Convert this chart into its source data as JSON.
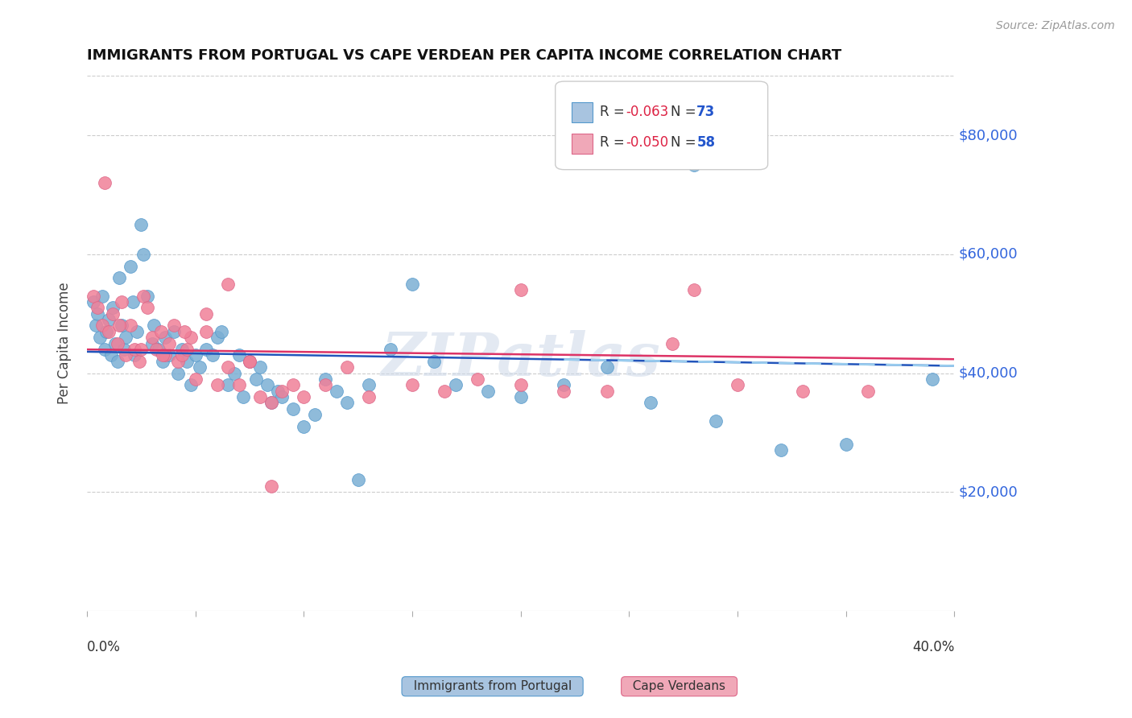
{
  "title": "IMMIGRANTS FROM PORTUGAL VS CAPE VERDEAN PER CAPITA INCOME CORRELATION CHART",
  "source": "Source: ZipAtlas.com",
  "ylabel": "Per Capita Income",
  "watermark": "ZIPatlas",
  "ytick_labels": [
    "$20,000",
    "$40,000",
    "$60,000",
    "$80,000"
  ],
  "ytick_values": [
    20000,
    40000,
    60000,
    80000
  ],
  "ylim": [
    0,
    90000
  ],
  "xlim": [
    0.0,
    0.4
  ],
  "blue_scatter_color": "#7bafd4",
  "pink_scatter_color": "#f08098",
  "blue_line_color": "#2255bb",
  "pink_line_color": "#dd3366",
  "blue_dash_color": "#99ccee",
  "right_label_color": "#3366dd",
  "legend_series1_color": "#a8c4e0",
  "legend_series2_color": "#f0a8b8",
  "legend_series1_edge": "#5599cc",
  "legend_series2_edge": "#dd6688",
  "portugal_x": [
    0.003,
    0.004,
    0.005,
    0.006,
    0.007,
    0.008,
    0.009,
    0.01,
    0.011,
    0.012,
    0.013,
    0.014,
    0.015,
    0.016,
    0.017,
    0.018,
    0.02,
    0.021,
    0.022,
    0.023,
    0.025,
    0.026,
    0.028,
    0.03,
    0.031,
    0.033,
    0.035,
    0.036,
    0.038,
    0.04,
    0.042,
    0.044,
    0.046,
    0.048,
    0.05,
    0.052,
    0.055,
    0.058,
    0.06,
    0.062,
    0.065,
    0.068,
    0.07,
    0.072,
    0.075,
    0.078,
    0.08,
    0.083,
    0.085,
    0.088,
    0.09,
    0.095,
    0.1,
    0.105,
    0.11,
    0.115,
    0.12,
    0.125,
    0.13,
    0.14,
    0.15,
    0.16,
    0.17,
    0.185,
    0.2,
    0.22,
    0.24,
    0.26,
    0.29,
    0.32,
    0.35,
    0.39,
    0.28
  ],
  "portugal_y": [
    52000,
    48000,
    50000,
    46000,
    53000,
    44000,
    47000,
    49000,
    43000,
    51000,
    45000,
    42000,
    56000,
    48000,
    44000,
    46000,
    58000,
    52000,
    43000,
    47000,
    65000,
    60000,
    53000,
    45000,
    48000,
    44000,
    42000,
    46000,
    43000,
    47000,
    40000,
    44000,
    42000,
    38000,
    43000,
    41000,
    44000,
    43000,
    46000,
    47000,
    38000,
    40000,
    43000,
    36000,
    42000,
    39000,
    41000,
    38000,
    35000,
    37000,
    36000,
    34000,
    31000,
    33000,
    39000,
    37000,
    35000,
    22000,
    38000,
    44000,
    55000,
    42000,
    38000,
    37000,
    36000,
    38000,
    41000,
    35000,
    32000,
    27000,
    28000,
    39000,
    75000
  ],
  "capeverde_x": [
    0.003,
    0.005,
    0.007,
    0.008,
    0.01,
    0.012,
    0.014,
    0.016,
    0.018,
    0.02,
    0.022,
    0.024,
    0.026,
    0.028,
    0.03,
    0.032,
    0.034,
    0.036,
    0.038,
    0.04,
    0.042,
    0.044,
    0.046,
    0.048,
    0.05,
    0.055,
    0.06,
    0.065,
    0.07,
    0.075,
    0.08,
    0.085,
    0.09,
    0.095,
    0.1,
    0.11,
    0.12,
    0.13,
    0.15,
    0.165,
    0.18,
    0.2,
    0.22,
    0.24,
    0.27,
    0.3,
    0.33,
    0.36,
    0.28,
    0.015,
    0.025,
    0.035,
    0.045,
    0.055,
    0.065,
    0.075,
    0.085,
    0.2
  ],
  "capeverde_y": [
    53000,
    51000,
    48000,
    72000,
    47000,
    50000,
    45000,
    52000,
    43000,
    48000,
    44000,
    42000,
    53000,
    51000,
    46000,
    44000,
    47000,
    43000,
    45000,
    48000,
    42000,
    43000,
    44000,
    46000,
    39000,
    47000,
    38000,
    41000,
    38000,
    42000,
    36000,
    35000,
    37000,
    38000,
    36000,
    38000,
    41000,
    36000,
    38000,
    37000,
    39000,
    38000,
    37000,
    37000,
    45000,
    38000,
    37000,
    37000,
    54000,
    48000,
    44000,
    43000,
    47000,
    50000,
    55000,
    42000,
    21000,
    54000
  ]
}
